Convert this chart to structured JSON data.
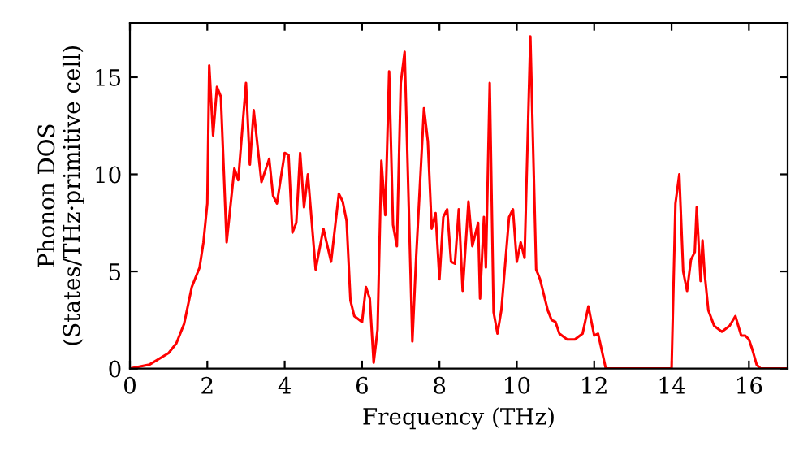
{
  "chart_data": {
    "type": "line",
    "xlabel": "Frequency (THz)",
    "ylabel": "Phonon DOS\n(States/THz·primitive cell)",
    "xlim": [
      0,
      17
    ],
    "ylim": [
      0,
      17.8
    ],
    "xticks": [
      0,
      2,
      4,
      6,
      8,
      10,
      12,
      14,
      16
    ],
    "yticks": [
      0,
      5,
      10,
      15
    ],
    "grid": false,
    "series": [
      {
        "color": "#ff0000",
        "x": [
          0,
          0.5,
          1,
          1.2,
          1.4,
          1.6,
          1.8,
          1.9,
          2.0,
          2.05,
          2.15,
          2.25,
          2.35,
          2.5,
          2.7,
          2.8,
          3.0,
          3.1,
          3.2,
          3.4,
          3.6,
          3.7,
          3.8,
          4.0,
          4.1,
          4.2,
          4.3,
          4.4,
          4.5,
          4.6,
          4.8,
          5.0,
          5.2,
          5.4,
          5.5,
          5.6,
          5.7,
          5.8,
          6.0,
          6.1,
          6.2,
          6.3,
          6.4,
          6.5,
          6.6,
          6.7,
          6.8,
          6.9,
          7.0,
          7.1,
          7.3,
          7.4,
          7.6,
          7.7,
          7.8,
          7.9,
          8.0,
          8.1,
          8.2,
          8.3,
          8.4,
          8.5,
          8.6,
          8.75,
          8.85,
          9.0,
          9.05,
          9.15,
          9.2,
          9.3,
          9.4,
          9.5,
          9.6,
          9.8,
          9.9,
          10.0,
          10.1,
          10.2,
          10.35,
          10.5,
          10.6,
          10.8,
          10.9,
          11.0,
          11.1,
          11.3,
          11.5,
          11.7,
          11.85,
          12.0,
          12.1,
          12.3,
          14.0,
          14.1,
          14.2,
          14.3,
          14.4,
          14.5,
          14.6,
          14.65,
          14.75,
          14.8,
          14.85,
          14.95,
          15.1,
          15.3,
          15.5,
          15.65,
          15.8,
          15.9,
          16.0,
          16.1,
          16.2,
          16.3,
          17
        ],
        "values": [
          0,
          0.2,
          0.8,
          1.3,
          2.3,
          4.2,
          5.2,
          6.5,
          8.5,
          15.6,
          12,
          14.5,
          14.0,
          6.5,
          10.3,
          9.7,
          14.7,
          10.5,
          13.3,
          9.6,
          10.8,
          8.9,
          8.5,
          11.1,
          11.0,
          7.0,
          7.5,
          11.1,
          8.3,
          10.0,
          5.1,
          7.2,
          5.5,
          9.0,
          8.6,
          7.6,
          3.5,
          2.7,
          2.4,
          4.2,
          3.6,
          0.3,
          2.0,
          10.7,
          7.9,
          15.3,
          7.4,
          6.3,
          14.7,
          16.3,
          1.4,
          5.8,
          13.4,
          11.7,
          7.2,
          8.0,
          4.6,
          7.8,
          8.2,
          5.5,
          5.4,
          8.2,
          4.0,
          8.6,
          6.3,
          7.5,
          3.6,
          7.8,
          5.2,
          14.7,
          2.9,
          1.8,
          3.0,
          7.8,
          8.2,
          5.5,
          6.5,
          5.7,
          17.1,
          5.1,
          4.6,
          3.0,
          2.5,
          2.4,
          1.8,
          1.5,
          1.5,
          1.8,
          3.2,
          1.7,
          1.8,
          0,
          0,
          8.5,
          10.0,
          5.0,
          4.0,
          5.6,
          6.0,
          8.3,
          4.5,
          6.6,
          5.0,
          3.0,
          2.2,
          1.9,
          2.2,
          2.7,
          1.7,
          1.7,
          1.5,
          0.9,
          0.2,
          0,
          0
        ]
      }
    ]
  }
}
